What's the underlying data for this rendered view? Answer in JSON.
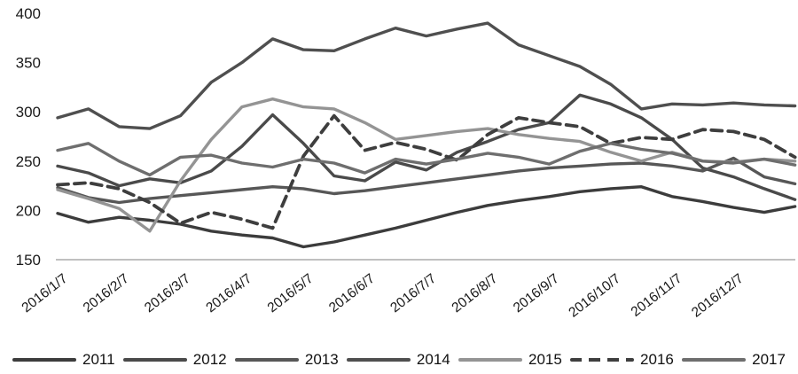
{
  "chart_data": {
    "type": "line",
    "title": "",
    "xlabel": "",
    "ylabel": "",
    "grid": "off",
    "legend_position": "bottom",
    "y_axis": {
      "min": 150,
      "max": 400,
      "step": 50,
      "tick_labels": [
        "150",
        "200",
        "250",
        "300",
        "350",
        "400"
      ]
    },
    "x_tick_labels": [
      "2016/1/7",
      "2016/2/7",
      "2016/3/7",
      "2016/4/7",
      "2016/5/7",
      "2016/6/7",
      "2016/7/7",
      "2016/8/7",
      "2016/9/7",
      "2016/10/7",
      "2016/11/7",
      "2016/12/7"
    ],
    "x_unit": "months-since-first-tick",
    "point_step_months": 0.5,
    "series": [
      {
        "name": "2011",
        "color": "#3c3c3c",
        "style": "solid",
        "values": [
          197,
          188,
          193,
          190,
          186,
          179,
          175,
          172,
          163,
          168,
          175,
          182,
          190,
          198,
          205,
          210,
          214,
          219,
          222,
          224,
          214,
          209,
          203,
          198,
          204
        ]
      },
      {
        "name": "2012",
        "color": "#4a4a4a",
        "style": "solid",
        "values": [
          245,
          238,
          225,
          232,
          228,
          240,
          265,
          297,
          268,
          235,
          230,
          249,
          241,
          259,
          270,
          282,
          289,
          317,
          308,
          294,
          272,
          243,
          234,
          222,
          211
        ]
      },
      {
        "name": "2013",
        "color": "#575757",
        "style": "solid",
        "values": [
          223,
          213,
          208,
          212,
          215,
          218,
          221,
          224,
          222,
          217,
          220,
          224,
          228,
          232,
          236,
          240,
          243,
          245,
          247,
          248,
          245,
          240,
          253,
          234,
          227
        ]
      },
      {
        "name": "2014",
        "color": "#4f4f4f",
        "style": "solid",
        "values": [
          294,
          303,
          285,
          283,
          296,
          330,
          350,
          374,
          363,
          362,
          374,
          385,
          377,
          384,
          390,
          368,
          357,
          346,
          328,
          303,
          308,
          307,
          309,
          307,
          306
        ]
      },
      {
        "name": "2015",
        "color": "#949494",
        "style": "solid",
        "values": [
          221,
          212,
          202,
          179,
          230,
          272,
          305,
          313,
          305,
          303,
          289,
          272,
          276,
          280,
          283,
          277,
          273,
          270,
          259,
          250,
          259,
          250,
          249,
          252,
          250
        ]
      },
      {
        "name": "2016",
        "color": "#3e3e3e",
        "style": "dashed",
        "values": [
          226,
          228,
          222,
          208,
          187,
          198,
          191,
          182,
          255,
          296,
          261,
          269,
          262,
          251,
          277,
          294,
          289,
          285,
          268,
          274,
          272,
          282,
          280,
          272,
          254
        ]
      },
      {
        "name": "2017",
        "color": "#6e6e6e",
        "style": "solid",
        "values": [
          261,
          268,
          250,
          236,
          254,
          256,
          248,
          244,
          252,
          248,
          238,
          252,
          247,
          252,
          258,
          254,
          247,
          260,
          268,
          262,
          258,
          250,
          248,
          252,
          246
        ]
      }
    ]
  }
}
